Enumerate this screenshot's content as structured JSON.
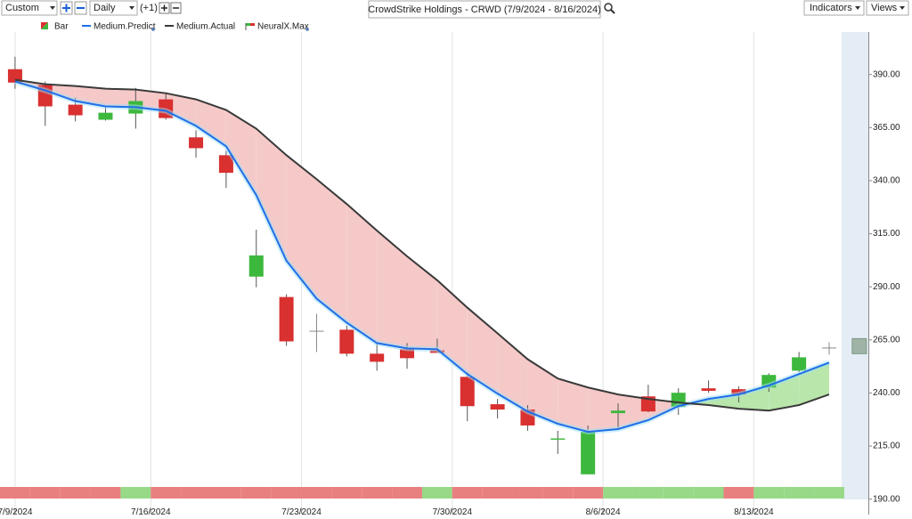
{
  "toolbar": {
    "range": "Custom",
    "interval": "Daily",
    "offset": "(+1)",
    "title": "CrowdStrike Holdings - CRWD (7/9/2024 - 8/16/2024)",
    "indicators": "Indicators",
    "views": "Views"
  },
  "chart_data": {
    "type": "candlestick",
    "legend": {
      "bar": "Bar",
      "neuralx": "NeuralX.Max"
    },
    "x": [
      0,
      1,
      2,
      3,
      4,
      5,
      6,
      7,
      8,
      9,
      10,
      11,
      12,
      13,
      14,
      15,
      16,
      17,
      18,
      19,
      20,
      21,
      22,
      23,
      24,
      25,
      26,
      27
    ],
    "xlim": [
      -0.5,
      28.3
    ],
    "xticks": [
      {
        "value": 0,
        "label": "7/9/2024"
      },
      {
        "value": 4.5,
        "label": "7/16/2024"
      },
      {
        "value": 9.5,
        "label": "7/23/2024"
      },
      {
        "value": 14.5,
        "label": "7/30/2024"
      },
      {
        "value": 19.5,
        "label": "8/6/2024"
      },
      {
        "value": 24.5,
        "label": "8/13/2024"
      }
    ],
    "ylim": [
      184,
      410
    ],
    "yticks": [
      {
        "value": 190,
        "label": "190.00"
      },
      {
        "value": 215,
        "label": "215.00"
      },
      {
        "value": 240,
        "label": "240.00"
      },
      {
        "value": 265,
        "label": "265.00"
      },
      {
        "value": 290,
        "label": "290.00"
      },
      {
        "value": 315,
        "label": "315.00"
      },
      {
        "value": 340,
        "label": "340.00"
      },
      {
        "value": 365,
        "label": "365.00"
      },
      {
        "value": 390,
        "label": "390.00"
      }
    ],
    "xgrid": true,
    "up_color": "#3cb83c",
    "down_color": "#d93030",
    "flat_color": "#888888",
    "ohlc": {
      "open": [
        392.5,
        385,
        375.8,
        368.7,
        371.6,
        378.3,
        360.4,
        352,
        294.8,
        285.2,
        269.3,
        269.8,
        258.5,
        260.6,
        260.1,
        247.6,
        234.7,
        232.2,
        218,
        201.7,
        230.5,
        238.4,
        233.4,
        242.2,
        241.8,
        242.6,
        250.5,
        261.4
      ],
      "high": [
        398.4,
        386.7,
        379.1,
        375,
        383.7,
        381.2,
        363.7,
        354.1,
        316.9,
        286.5,
        277.3,
        271.8,
        263.5,
        263.5,
        265.6,
        249.7,
        237.2,
        234.3,
        222.2,
        224.7,
        235.1,
        243.9,
        242.2,
        245.9,
        243.1,
        249.3,
        259.3,
        263.9
      ],
      "low": [
        383.3,
        365.8,
        367.9,
        368.3,
        364.5,
        368.7,
        350.8,
        336.6,
        289.8,
        262.2,
        259.3,
        257.2,
        250.5,
        251.4,
        258.9,
        226.7,
        228,
        222.2,
        211.3,
        201.7,
        222.6,
        230.9,
        229.7,
        240.1,
        235.5,
        240.5,
        249.7,
        258.1
      ],
      "close": [
        386.2,
        375,
        370.8,
        372,
        377.5,
        369.5,
        355.3,
        343.7,
        304.8,
        264.3,
        269.3,
        258.5,
        254.7,
        256.4,
        258.9,
        233.8,
        232.2,
        224.7,
        218.6,
        221.7,
        231.7,
        231.3,
        240.1,
        241,
        239.3,
        248.5,
        256.8,
        261.4
      ]
    },
    "series": [
      {
        "name": "Medium.Predict",
        "color": "#1f6fe8",
        "values": [
          386.7,
          382.5,
          377.5,
          375,
          374.6,
          372.9,
          365.8,
          356.2,
          333.2,
          302.3,
          284.4,
          273.1,
          263.5,
          261,
          260.6,
          248.9,
          239.7,
          231.3,
          225.5,
          221.7,
          223,
          227.2,
          233.8,
          237.2,
          239.3,
          243.5,
          248.9,
          254.3
        ]
      },
      {
        "name": "Medium.Actual",
        "color": "#3a3a3a",
        "values": [
          387.5,
          385.4,
          384.6,
          383.3,
          382.9,
          381.2,
          378.3,
          373.3,
          364.5,
          352,
          340.7,
          329,
          316.5,
          304.4,
          293.1,
          280.2,
          268.1,
          255.9,
          246.8,
          242.6,
          239.3,
          237.2,
          235.5,
          234.3,
          232.6,
          231.7,
          234.3,
          239.3
        ]
      }
    ],
    "fill_below_color": "#f6c9c9",
    "fill_above_color": "#b9e6ab",
    "signal_colors": [
      "#e98080",
      "#e98080",
      "#e98080",
      "#e98080",
      "#97d987",
      "#e98080",
      "#e98080",
      "#e98080",
      "#e98080",
      "#e98080",
      "#e98080",
      "#e98080",
      "#e98080",
      "#e98080",
      "#97d987",
      "#e98080",
      "#e98080",
      "#e98080",
      "#e98080",
      "#e98080",
      "#97d987",
      "#97d987",
      "#97d987",
      "#97d987",
      "#e98080",
      "#97d987",
      "#97d987",
      "#97d987"
    ],
    "neuralx_max": {
      "x": 28,
      "values": [
        265.6,
        258.5
      ],
      "color": "#9fb3a6"
    }
  }
}
